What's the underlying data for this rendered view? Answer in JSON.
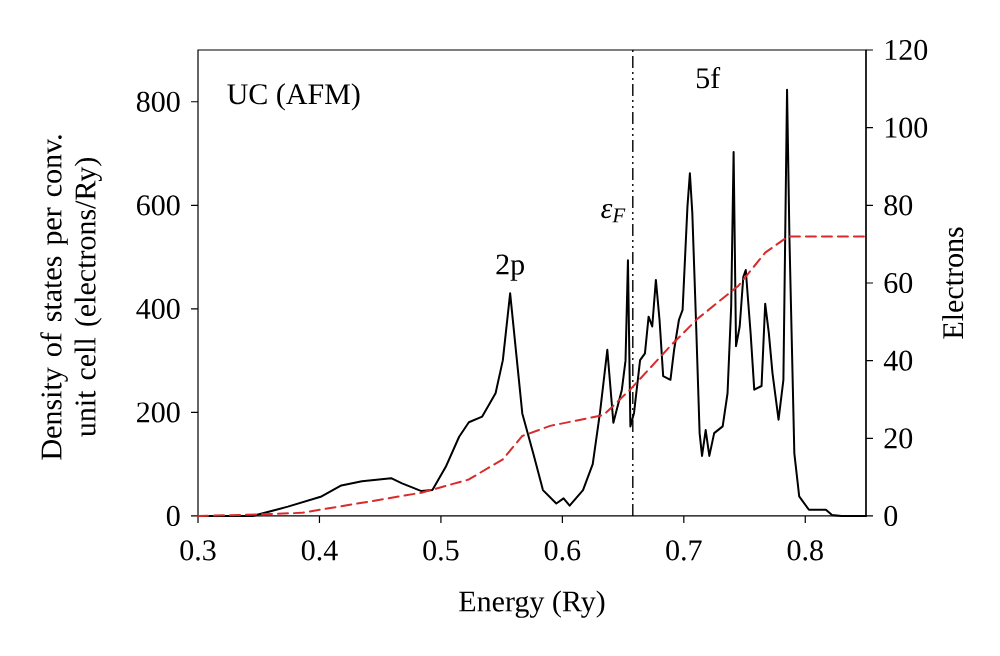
{
  "chart_data": {
    "type": "line",
    "xlabel": "Energy (Ry)",
    "ylabel": "Density of states per conv. unit cell (electrons/Ry)",
    "y2label": "Electrons",
    "xlim": [
      0.3,
      0.85
    ],
    "xticks": [
      0.3,
      0.4,
      0.5,
      0.6,
      0.7,
      0.8
    ],
    "ylim": [
      0,
      900
    ],
    "yticks": [
      0,
      200,
      400,
      600,
      800
    ],
    "y2lim": [
      0,
      120
    ],
    "y2ticks": [
      0,
      20,
      40,
      60,
      80,
      100,
      120
    ],
    "series": [
      {
        "color": "#000000",
        "line_style": "solid",
        "x": [
          0.3,
          0.345,
          0.374,
          0.401,
          0.418,
          0.435,
          0.459,
          0.468,
          0.484,
          0.493,
          0.504,
          0.515,
          0.523,
          0.534,
          0.545,
          0.551,
          0.557,
          0.562,
          0.567,
          0.576,
          0.584,
          0.595,
          0.601,
          0.606,
          0.617,
          0.625,
          0.631,
          0.637,
          0.642,
          0.649,
          0.652,
          0.654,
          0.656,
          0.659,
          0.664,
          0.668,
          0.671,
          0.674,
          0.677,
          0.68,
          0.683,
          0.689,
          0.692,
          0.696,
          0.699,
          0.703,
          0.705,
          0.707,
          0.71,
          0.713,
          0.715,
          0.718,
          0.721,
          0.725,
          0.732,
          0.736,
          0.739,
          0.741,
          0.743,
          0.746,
          0.749,
          0.751,
          0.755,
          0.758,
          0.764,
          0.767,
          0.77,
          0.773,
          0.778,
          0.782,
          0.785,
          0.787,
          0.791,
          0.795,
          0.803,
          0.817,
          0.822,
          0.83,
          0.85
        ],
        "values": [
          0,
          0,
          18,
          37,
          59,
          67,
          73,
          63,
          48,
          50,
          95,
          153,
          181,
          192,
          237,
          301,
          430,
          314,
          198,
          121,
          50,
          24,
          34,
          20,
          50,
          100,
          200,
          321,
          180,
          244,
          300,
          494,
          173,
          199,
          301,
          314,
          385,
          366,
          456,
          379,
          270,
          263,
          321,
          379,
          398,
          598,
          662,
          585,
          379,
          160,
          116,
          166,
          116,
          160,
          173,
          237,
          405,
          703,
          328,
          366,
          462,
          475,
          353,
          244,
          251,
          410,
          353,
          276,
          186,
          263,
          823,
          533,
          121,
          38,
          12,
          12,
          2,
          0,
          0
        ]
      },
      {
        "color": "#d92b2b",
        "line_style": "dashed",
        "axis": "y2",
        "x": [
          0.3,
          0.34,
          0.385,
          0.435,
          0.484,
          0.523,
          0.551,
          0.567,
          0.59,
          0.634,
          0.656,
          0.689,
          0.711,
          0.745,
          0.767,
          0.786,
          0.85
        ],
        "values": [
          0,
          0.3,
          0.8,
          3.4,
          6,
          9.4,
          14.6,
          20.6,
          23.2,
          26,
          32.6,
          43.8,
          50.7,
          59.3,
          67.8,
          72,
          72
        ]
      }
    ],
    "ref_lines": [
      {
        "axis": "x",
        "value": 0.658,
        "label": "ε$_{F}$",
        "color": "#000000",
        "line_style": "dashdot"
      }
    ],
    "annotations": [
      "UC (AFM)",
      {
        "text": "2p",
        "x": 0.557,
        "y": 430
      },
      "5f"
    ]
  }
}
